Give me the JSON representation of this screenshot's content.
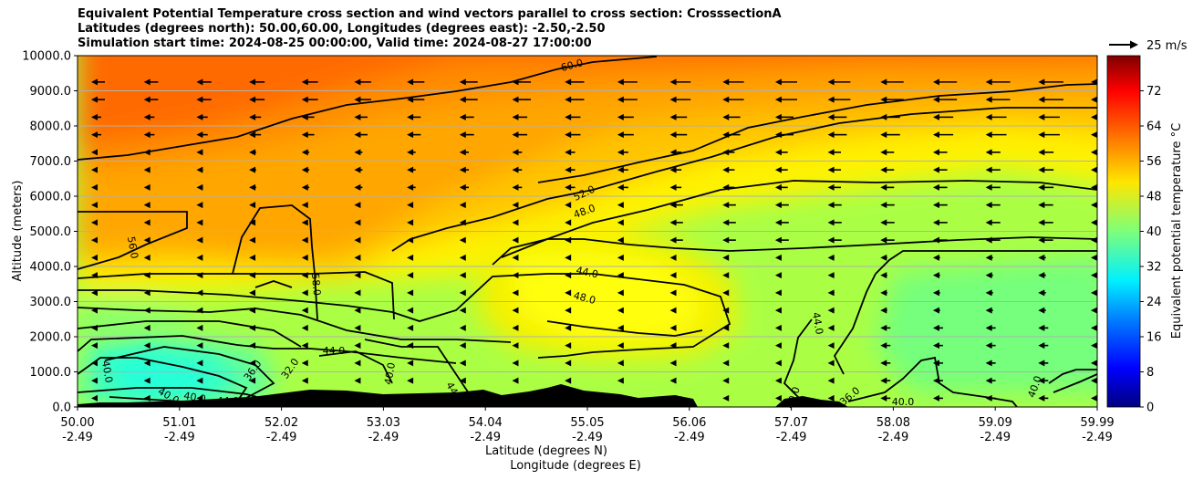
{
  "chart_data": {
    "type": "heatmap",
    "title_lines": [
      "Equivalent Potential Temperature cross section and wind vectors parallel to cross section: CrosssectionA",
      "Latitudes (degrees north): 50.00,60.00, Longitudes (degrees east): -2.50,-2.50",
      "Simulation start time: 2024-08-25 00:00:00, Valid time: 2024-08-27 17:00:00"
    ],
    "ylabel": "Altitude (meters)",
    "xlabel_line1": "Latitude (degrees N)",
    "xlabel_line2": "Longitude (degrees E)",
    "ylim": [
      0,
      10000
    ],
    "yticks": [
      "0.0",
      "1000.0",
      "2000.0",
      "3000.0",
      "4000.0",
      "5000.0",
      "6000.0",
      "7000.0",
      "8000.0",
      "9000.0",
      "10000.0"
    ],
    "xticks_lat": [
      "50.00",
      "51.01",
      "52.02",
      "53.03",
      "54.04",
      "55.05",
      "56.06",
      "57.07",
      "58.08",
      "59.09",
      "59.99"
    ],
    "xticks_lon": [
      "-2.49",
      "-2.49",
      "-2.49",
      "-2.49",
      "-2.49",
      "-2.49",
      "-2.49",
      "-2.49",
      "-2.49",
      "-2.49",
      "-2.49"
    ],
    "grid": "horizontal",
    "colorbar": {
      "label": "Equivalent potential temperature °C",
      "range": [
        0,
        80
      ],
      "ticks": [
        "0",
        "8",
        "16",
        "24",
        "32",
        "40",
        "48",
        "56",
        "64",
        "72"
      ],
      "colormap": "jet"
    },
    "quiver_key": "25 m/s",
    "contour_labels": [
      "60.0",
      "52.0",
      "48.0",
      "56.0",
      "58.0",
      "44.0",
      "44.0",
      "48.0",
      "40.0",
      "36.0",
      "32.0",
      "40.0",
      "40.0",
      "40.0",
      "44.0",
      "44.0",
      "44.0",
      "40.0",
      "36.0",
      "40.0",
      "40.0"
    ],
    "terrain_color": "#000000",
    "wind_vectors": "westward (leftward) arrows, stronger above 6000 m"
  }
}
